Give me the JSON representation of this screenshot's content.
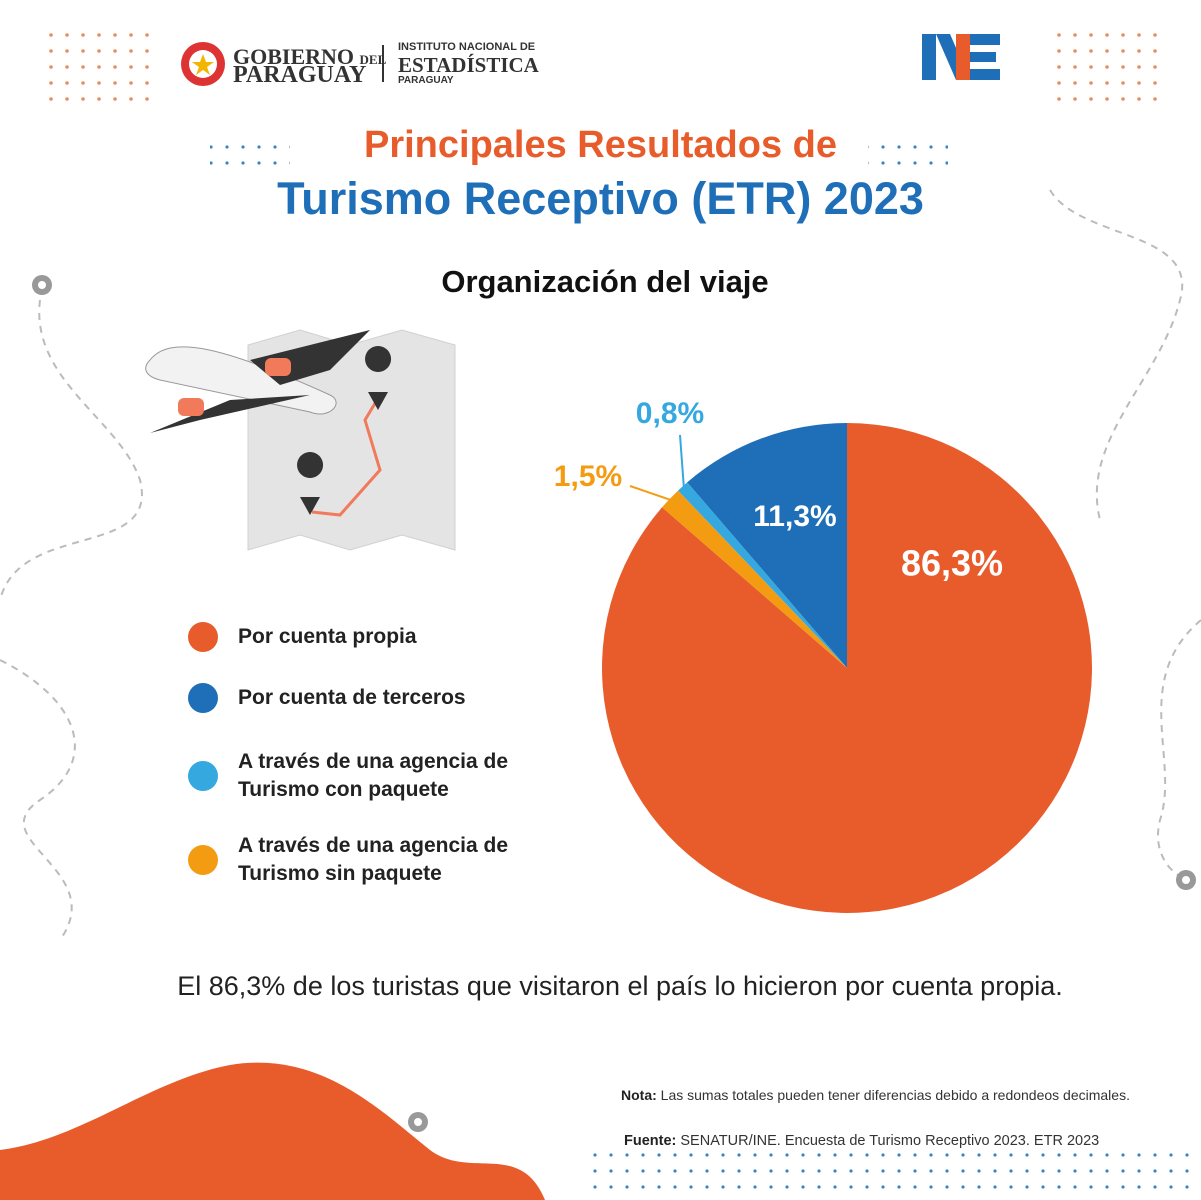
{
  "header": {
    "gov_1": "GOBIERNO",
    "gov_2": "DEL",
    "gov_3": "PARAGUAY",
    "ine_1": "INSTITUTO NACIONAL DE",
    "ine_2": "ESTADÍSTICA",
    "ine_3": "PARAGUAY"
  },
  "title_1": "Principales Resultados de",
  "title_2": "Turismo Receptivo (ETR) 2023",
  "chart_data": {
    "type": "pie",
    "title": "Organización del viaje",
    "categories": [
      "Por cuenta propia",
      "Por cuenta de terceros",
      "A través de una agencia de Turismo con paquete",
      "A través de una agencia de Turismo sin paquete"
    ],
    "values": [
      86.3,
      11.3,
      0.8,
      1.5
    ],
    "value_labels": [
      "86,3%",
      "11,3%",
      "0,8%",
      "1,5%"
    ],
    "colors": [
      "#e85c2c",
      "#1f6fb8",
      "#35a8e0",
      "#f39c12"
    ]
  },
  "statement": "El 86,3% de los turistas que visitaron el país lo hicieron por cuenta propia.",
  "footer": {
    "note_label": "Nota:",
    "note": "Las sumas totales pueden tener diferencias debido a redondeos decimales.",
    "source_label": "Fuente:",
    "source": "SENATUR/INE. Encuesta de Turismo Receptivo 2023. ETR 2023"
  }
}
